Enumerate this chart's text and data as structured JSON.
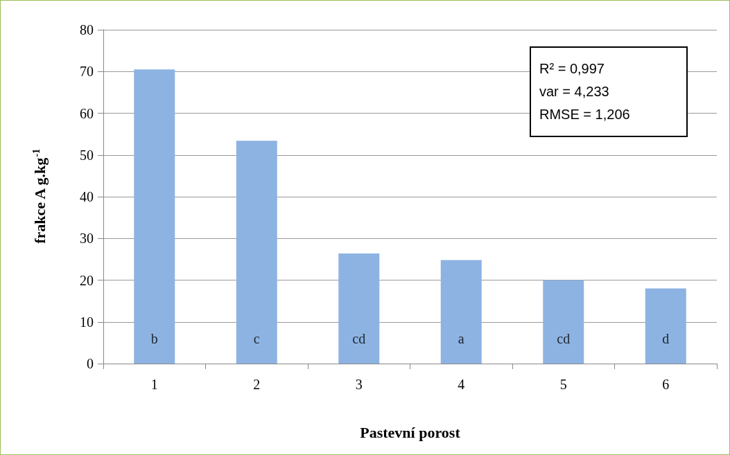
{
  "chart_data": {
    "type": "bar",
    "xlabel": "Pastevní porost",
    "ylabel": "frakce A g.kg$^{-1}$",
    "categories": [
      "1",
      "2",
      "3",
      "4",
      "5",
      "6"
    ],
    "values": [
      70.5,
      53.4,
      26.4,
      24.8,
      20.0,
      18.0
    ],
    "color": "#8db3e2",
    "ylim": [
      0,
      80
    ],
    "yticks": [
      0,
      10,
      20,
      30,
      40,
      50,
      60,
      70,
      80
    ],
    "grid": "y",
    "annotations": [
      "b",
      "c",
      "cd",
      "a",
      "cd",
      "d",
      "R² = 0,997\nvar = 4,233\nRMSE = 1,206"
    ]
  }
}
